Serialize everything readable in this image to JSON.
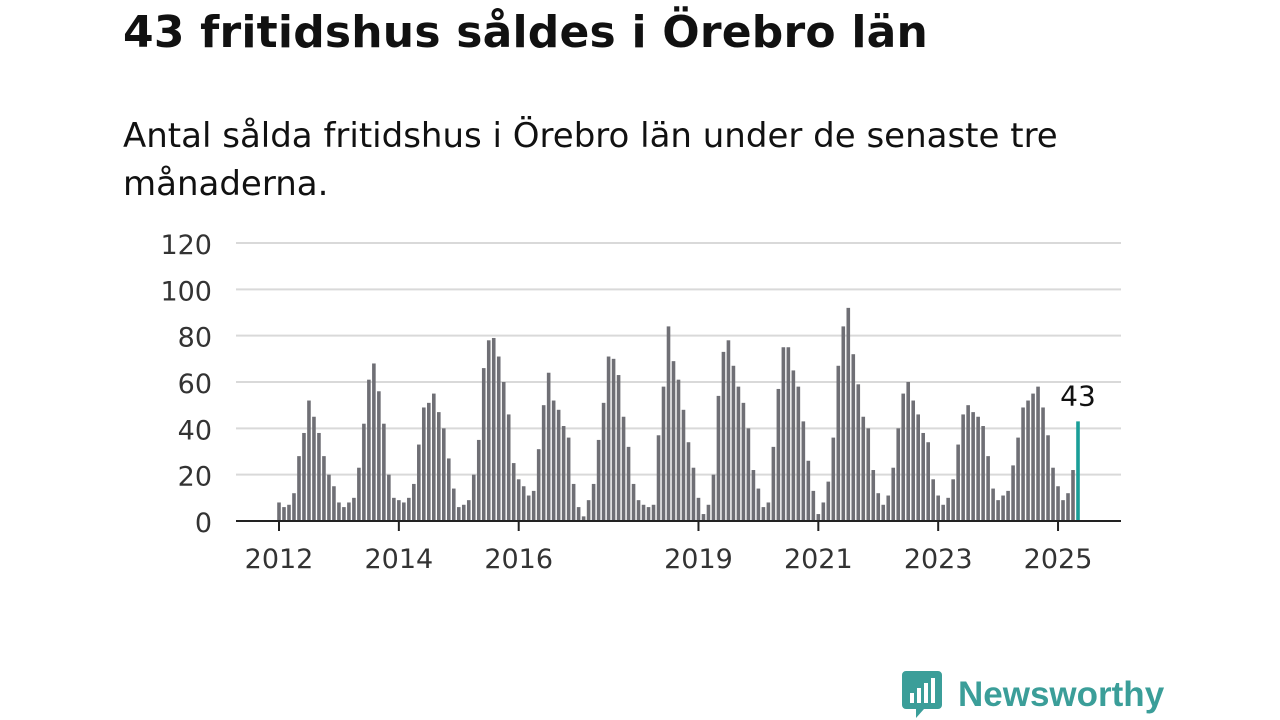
{
  "title": "43 fritidshus såldes i Örebro län",
  "subtitle": "Antal sålda fritidshus i Örebro län under de senaste tre månaderna.",
  "brand": {
    "name": "Newsworthy",
    "color": "#3b9e99",
    "icon": "bar-chart-speech-bubble-icon"
  },
  "chart_data": {
    "type": "bar",
    "title": "",
    "xlabel": "",
    "ylabel": "",
    "ylim": [
      0,
      120
    ],
    "yticks": [
      0,
      20,
      40,
      60,
      80,
      100,
      120
    ],
    "x_tick_labels": [
      "2012",
      "2014",
      "2016",
      "2019",
      "2021",
      "2023",
      "2025"
    ],
    "grid": true,
    "bar_color": "#6f6f75",
    "highlight_color": "#1a9e98",
    "highlight_label": "43",
    "start": "2012-01",
    "frequency": "monthly",
    "series": [
      {
        "values": [
          8,
          6,
          7,
          12,
          28,
          38,
          52,
          45,
          38,
          28,
          20,
          15,
          8,
          6,
          8,
          10,
          23,
          42,
          61,
          68,
          56,
          42,
          20,
          10,
          9,
          8,
          10,
          16,
          33,
          49,
          51,
          55,
          47,
          40,
          27,
          14,
          6,
          7,
          9,
          20,
          35,
          66,
          78,
          79,
          71,
          60,
          46,
          25,
          18,
          15,
          11,
          13,
          31,
          50,
          64,
          52,
          48,
          41,
          36,
          16,
          6,
          2,
          9,
          16,
          35,
          51,
          71,
          70,
          63,
          45,
          32,
          16,
          9,
          7,
          6,
          7,
          37,
          58,
          84,
          69,
          61,
          48,
          34,
          23,
          10,
          3,
          7,
          20,
          54,
          73,
          78,
          67,
          58,
          51,
          40,
          22,
          14,
          6,
          8,
          32,
          57,
          75,
          75,
          65,
          58,
          43,
          26,
          13,
          3,
          8,
          17,
          36,
          67,
          84,
          92,
          72,
          59,
          45,
          40,
          22,
          12,
          7,
          11,
          23,
          40,
          55,
          60,
          52,
          46,
          38,
          34,
          18,
          11,
          7,
          10,
          18,
          33,
          46,
          50,
          47,
          45,
          41,
          28,
          14,
          9,
          11,
          13,
          24,
          36,
          49,
          52,
          55,
          58,
          49,
          37,
          23,
          15,
          9,
          12,
          22,
          43
        ]
      }
    ]
  }
}
